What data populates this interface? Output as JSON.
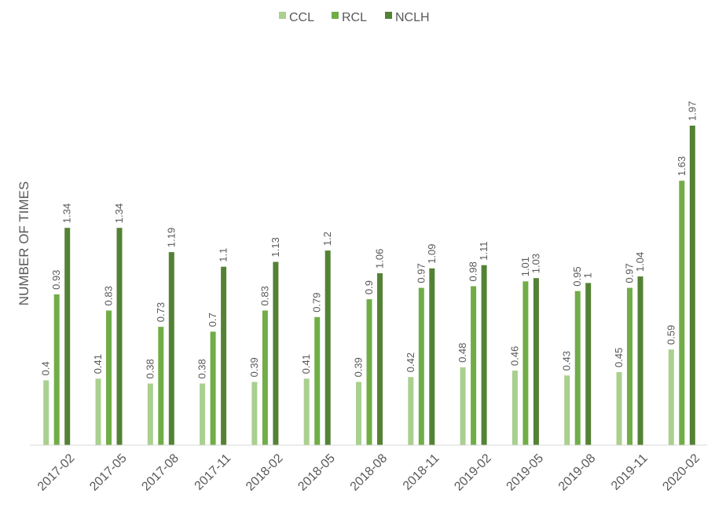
{
  "chart_data": {
    "type": "bar",
    "title": "",
    "xlabel": "",
    "ylabel": "NUMBER OF TIMES",
    "ylim": [
      0,
      2.15
    ],
    "grid": false,
    "legend_position": "top-center",
    "categories": [
      "2017-02",
      "2017-05",
      "2017-08",
      "2017-11",
      "2018-02",
      "2018-05",
      "2018-08",
      "2018-11",
      "2019-02",
      "2019-05",
      "2019-08",
      "2019-11",
      "2020-02"
    ],
    "series": [
      {
        "name": "CCL",
        "color": "#a9d08e",
        "values": [
          0.4,
          0.41,
          0.38,
          0.38,
          0.39,
          0.41,
          0.39,
          0.42,
          0.48,
          0.46,
          0.43,
          0.45,
          0.59
        ]
      },
      {
        "name": "RCL",
        "color": "#70ad47",
        "values": [
          0.93,
          0.83,
          0.73,
          0.7,
          0.83,
          0.79,
          0.9,
          0.97,
          0.98,
          1.01,
          0.95,
          0.97,
          1.63
        ]
      },
      {
        "name": "NCLH",
        "color": "#548235",
        "values": [
          1.34,
          1.34,
          1.19,
          1.1,
          1.13,
          1.2,
          1.06,
          1.09,
          1.11,
          1.03,
          1,
          1.04,
          1.97
        ]
      }
    ]
  }
}
